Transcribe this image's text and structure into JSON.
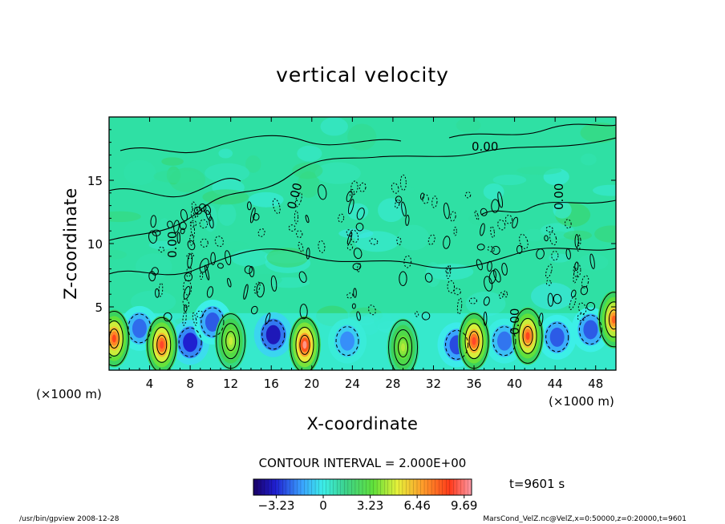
{
  "chart_data": {
    "type": "heatmap",
    "title": "vertical velocity",
    "xlabel": "X-coordinate",
    "ylabel": "Z-coordinate",
    "xlim": [
      0,
      50
    ],
    "ylim": [
      0,
      20
    ],
    "x_ticks": [
      "4",
      "8",
      "12",
      "16",
      "20",
      "24",
      "28",
      "32",
      "36",
      "40",
      "44",
      "48"
    ],
    "y_ticks": [
      "5",
      "10",
      "15"
    ],
    "x_unit_left": "(×1000 m)",
    "x_unit_right": "(×1000 m)",
    "contour_interval": "CONTOUR INTERVAL = 2.000E+00",
    "contour_labels": [
      "0.00",
      "0.00",
      "0.00",
      "0.00",
      "0.00"
    ],
    "colorbar_ticks": [
      "−3.23",
      "0",
      "3.23",
      "6.46",
      "9.69"
    ],
    "colorbar_range": [
      -4.8,
      10.2
    ],
    "time_label": "t=9601 s",
    "footer_left": "/usr/bin/gpview   2008-12-28",
    "footer_right": "MarsCond_VelZ.nc@VelZ,x=0:50000,z=0:20000,t=9601",
    "updrafts": [
      {
        "x": 0.5,
        "z": 2.5,
        "w": 7.5
      },
      {
        "x": 5.2,
        "z": 2.0,
        "w": 7.8
      },
      {
        "x": 12.0,
        "z": 2.3,
        "w": 3.8
      },
      {
        "x": 19.3,
        "z": 2.0,
        "w": 8.5
      },
      {
        "x": 29.0,
        "z": 1.8,
        "w": 3.5
      },
      {
        "x": 36.0,
        "z": 2.3,
        "w": 7.8
      },
      {
        "x": 41.3,
        "z": 2.7,
        "w": 7.5
      },
      {
        "x": 49.8,
        "z": 4.0,
        "w": 7.0
      }
    ],
    "downdrafts": [
      {
        "x": 3.0,
        "z": 3.3,
        "w": -2.6
      },
      {
        "x": 8.0,
        "z": 2.2,
        "w": -3.5
      },
      {
        "x": 10.2,
        "z": 3.8,
        "w": -2.8
      },
      {
        "x": 16.2,
        "z": 2.8,
        "w": -3.8
      },
      {
        "x": 23.5,
        "z": 2.3,
        "w": -2.2
      },
      {
        "x": 34.3,
        "z": 2.0,
        "w": -3.0
      },
      {
        "x": 39.0,
        "z": 2.3,
        "w": -2.5
      },
      {
        "x": 44.2,
        "z": 2.6,
        "w": -2.8
      },
      {
        "x": 47.5,
        "z": 3.2,
        "w": -2.8
      }
    ]
  }
}
